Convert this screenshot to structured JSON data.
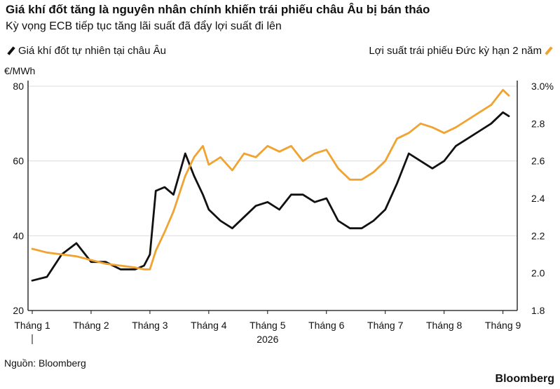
{
  "header": {
    "title": "Giá khí đốt tăng là nguyên nhân chính khiến trái phiếu châu Âu bị bán tháo",
    "subtitle": "Kỳ vọng ECB tiếp tục tăng lãi suất đã đẩy lợi suất đi lên"
  },
  "legend": {
    "left": "Giá khí đốt tự nhiên tại châu Âu",
    "right": "Lợi suất trái phiếu Đức kỳ hạn 2 năm"
  },
  "colors": {
    "gas": "#111111",
    "yield": "#f0a330"
  },
  "footer": {
    "source": "Nguồn: Bloomberg",
    "brand": "Bloomberg"
  },
  "chart_data": {
    "type": "line",
    "y_left_label": "€/MWh",
    "y_left_ticks": [
      "80",
      "60",
      "40",
      "20"
    ],
    "y_left_range": [
      20,
      80
    ],
    "y_right_ticks": [
      "3.0%",
      "2.8",
      "2.6",
      "2.4",
      "2.2",
      "2.0",
      "1.8"
    ],
    "y_right_range": [
      1.8,
      3.0
    ],
    "x_tick_labels": [
      "Tháng 1",
      "Tháng 2",
      "Tháng 3",
      "Tháng 4",
      "Tháng 5",
      "Tháng 6",
      "Tháng 7",
      "Tháng 8",
      "Tháng 9"
    ],
    "x_year_label": "2026",
    "grid": true,
    "series": [
      {
        "name": "Giá khí đốt tự nhiên tại châu Âu",
        "axis": "left",
        "x": [
          1.0,
          1.25,
          1.5,
          1.75,
          2.0,
          2.25,
          2.5,
          2.75,
          2.9,
          3.0,
          3.1,
          3.25,
          3.4,
          3.6,
          3.75,
          3.9,
          4.0,
          4.2,
          4.4,
          4.6,
          4.8,
          5.0,
          5.2,
          5.4,
          5.6,
          5.8,
          6.0,
          6.2,
          6.4,
          6.6,
          6.8,
          7.0,
          7.2,
          7.4,
          7.6,
          7.8,
          8.0,
          8.2,
          8.4,
          8.6,
          8.8,
          9.0,
          9.1
        ],
        "values": [
          28,
          29,
          35,
          38,
          33,
          33,
          31,
          31,
          32,
          35,
          52,
          53,
          51,
          62,
          56,
          51,
          47,
          44,
          42,
          45,
          48,
          49,
          47,
          51,
          51,
          49,
          50,
          44,
          42,
          42,
          44,
          47,
          54,
          62,
          60,
          58,
          60,
          64,
          66,
          68,
          70,
          73,
          72
        ]
      },
      {
        "name": "Lợi suất trái phiếu Đức kỳ hạn 2 năm",
        "axis": "right",
        "x": [
          1.0,
          1.25,
          1.5,
          1.75,
          2.0,
          2.25,
          2.5,
          2.75,
          2.9,
          3.0,
          3.1,
          3.25,
          3.4,
          3.6,
          3.75,
          3.9,
          4.0,
          4.2,
          4.4,
          4.6,
          4.8,
          5.0,
          5.2,
          5.4,
          5.6,
          5.8,
          6.0,
          6.2,
          6.4,
          6.6,
          6.8,
          7.0,
          7.2,
          7.4,
          7.6,
          7.8,
          8.0,
          8.2,
          8.4,
          8.6,
          8.8,
          9.0,
          9.1
        ],
        "values": [
          2.13,
          2.11,
          2.1,
          2.09,
          2.07,
          2.05,
          2.04,
          2.03,
          2.02,
          2.02,
          2.12,
          2.22,
          2.33,
          2.52,
          2.62,
          2.68,
          2.58,
          2.62,
          2.55,
          2.64,
          2.62,
          2.68,
          2.65,
          2.68,
          2.6,
          2.64,
          2.66,
          2.56,
          2.5,
          2.5,
          2.54,
          2.6,
          2.72,
          2.75,
          2.8,
          2.78,
          2.75,
          2.78,
          2.82,
          2.86,
          2.9,
          2.98,
          2.95
        ]
      }
    ]
  }
}
